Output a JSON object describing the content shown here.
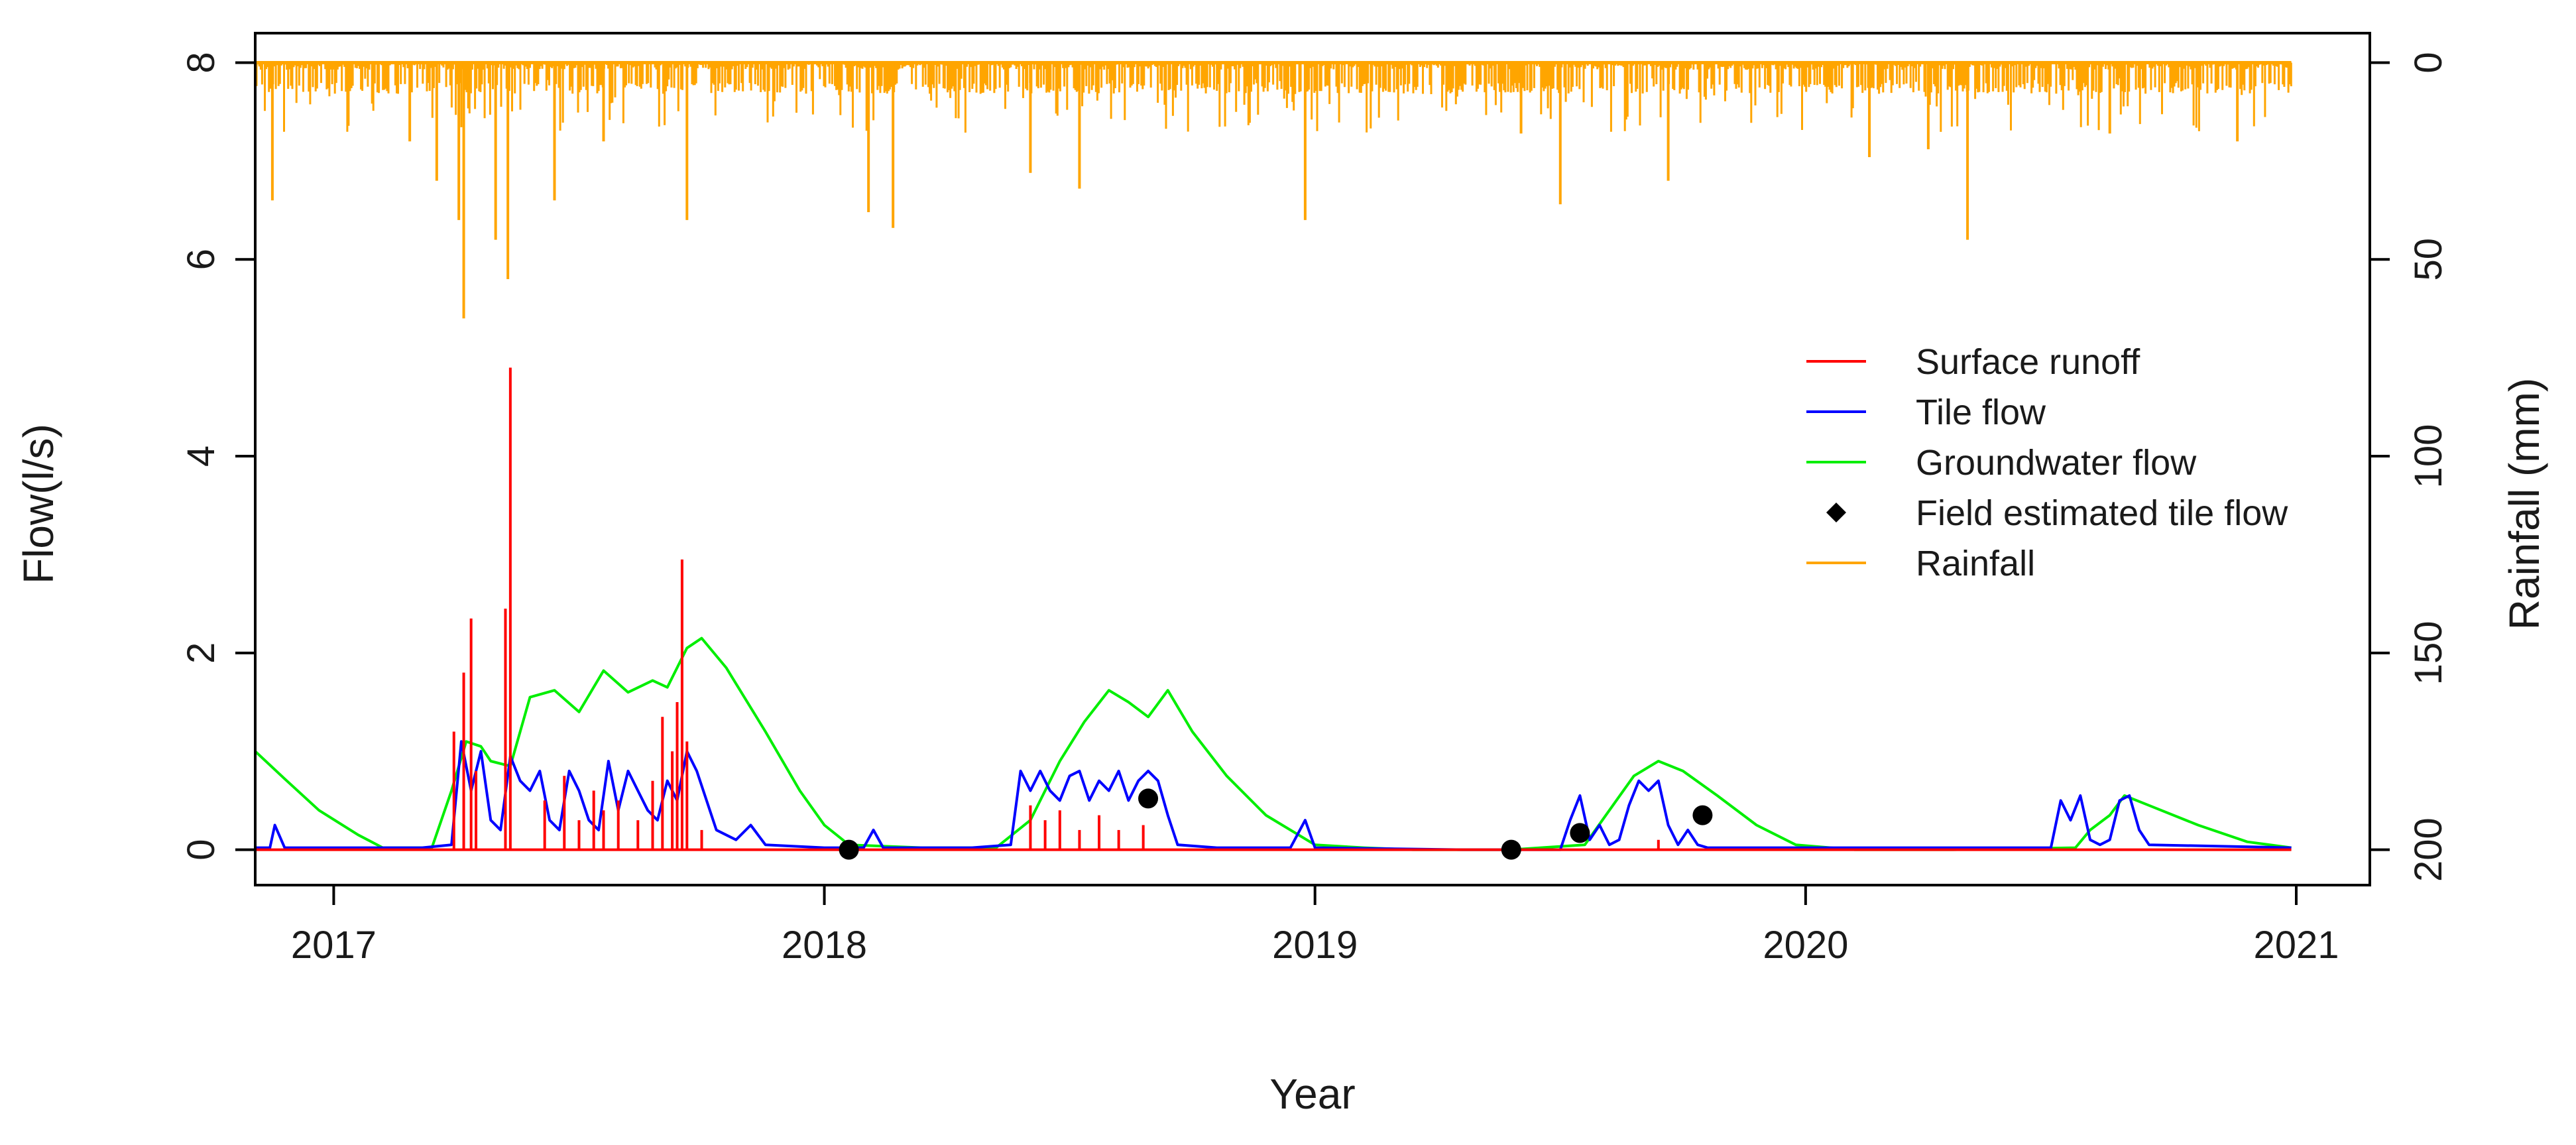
{
  "chart_data": {
    "type": "line",
    "title": "",
    "xlabel": "Year",
    "ylabel": "Flow(l/s)",
    "y2label": "Rainfall (mm)",
    "xlim": [
      2016.84,
      2021.15
    ],
    "ylim": [
      -0.36,
      8.3
    ],
    "y2lim": [
      200,
      0
    ],
    "x_ticks": [
      2017,
      2018,
      2019,
      2020,
      2021
    ],
    "x_tick_labels": [
      "2017",
      "2018",
      "2019",
      "2020",
      "2021"
    ],
    "y_ticks": [
      0,
      2,
      4,
      6,
      8
    ],
    "y_tick_labels": [
      "0",
      "2",
      "4",
      "6",
      "8"
    ],
    "y2_ticks": [
      0,
      50,
      100,
      150,
      200
    ],
    "y2_tick_labels": [
      "0",
      "50",
      "100",
      "150",
      "200"
    ],
    "legend_position": "right-center",
    "legend": [
      {
        "label": "Surface runoff",
        "color": "#ff0000",
        "kind": "line"
      },
      {
        "label": "Tile flow",
        "color": "#0000ff",
        "kind": "line"
      },
      {
        "label": "Groundwater flow",
        "color": "#00ee00",
        "kind": "line"
      },
      {
        "label": "Field estimated tile flow",
        "color": "#000000",
        "kind": "point"
      },
      {
        "label": "Rainfall",
        "color": "#ffa500",
        "kind": "line"
      }
    ],
    "series": [
      {
        "name": "Groundwater flow",
        "color": "#00ee00",
        "x": [
          2016.84,
          2016.9,
          2016.97,
          2017.05,
          2017.1,
          2017.2,
          2017.24,
          2017.27,
          2017.3,
          2017.32,
          2017.36,
          2017.4,
          2017.45,
          2017.5,
          2017.55,
          2017.6,
          2017.65,
          2017.68,
          2017.72,
          2017.75,
          2017.8,
          2017.88,
          2017.95,
          2018.0,
          2018.05,
          2018.2,
          2018.35,
          2018.42,
          2018.48,
          2018.53,
          2018.58,
          2018.62,
          2018.66,
          2018.7,
          2018.75,
          2018.82,
          2018.9,
          2019.0,
          2019.1,
          2019.2,
          2019.4,
          2019.55,
          2019.6,
          2019.65,
          2019.7,
          2019.75,
          2019.82,
          2019.9,
          2019.98,
          2020.1,
          2020.3,
          2020.55,
          2020.58,
          2020.62,
          2020.65,
          2020.7,
          2020.8,
          2020.9,
          2020.99
        ],
        "values": [
          1.0,
          0.72,
          0.4,
          0.15,
          0.02,
          0.02,
          0.6,
          1.1,
          1.05,
          0.9,
          0.85,
          1.55,
          1.62,
          1.4,
          1.82,
          1.6,
          1.72,
          1.65,
          2.05,
          2.15,
          1.85,
          1.2,
          0.6,
          0.25,
          0.05,
          0.02,
          0.02,
          0.3,
          0.9,
          1.3,
          1.62,
          1.5,
          1.35,
          1.62,
          1.2,
          0.75,
          0.35,
          0.05,
          0.02,
          0.0,
          0.0,
          0.05,
          0.4,
          0.75,
          0.9,
          0.8,
          0.55,
          0.25,
          0.05,
          0.0,
          0.0,
          0.02,
          0.2,
          0.35,
          0.55,
          0.45,
          0.25,
          0.08,
          0.02
        ]
      },
      {
        "name": "Tile flow",
        "color": "#0000ff",
        "x": [
          2016.84,
          2016.87,
          2016.88,
          2016.9,
          2017.0,
          2017.1,
          2017.18,
          2017.24,
          2017.26,
          2017.28,
          2017.3,
          2017.32,
          2017.34,
          2017.36,
          2017.38,
          2017.4,
          2017.42,
          2017.44,
          2017.46,
          2017.48,
          2017.5,
          2017.52,
          2017.54,
          2017.56,
          2017.58,
          2017.6,
          2017.62,
          2017.64,
          2017.66,
          2017.68,
          2017.7,
          2017.72,
          2017.74,
          2017.76,
          2017.78,
          2017.82,
          2017.85,
          2017.88,
          2018.0,
          2018.08,
          2018.1,
          2018.12,
          2018.3,
          2018.38,
          2018.4,
          2018.42,
          2018.44,
          2018.46,
          2018.48,
          2018.5,
          2018.52,
          2018.54,
          2018.56,
          2018.58,
          2018.6,
          2018.62,
          2018.64,
          2018.66,
          2018.68,
          2018.7,
          2018.72,
          2018.8,
          2018.95,
          2018.98,
          2019.0,
          2019.3,
          2019.5,
          2019.52,
          2019.54,
          2019.56,
          2019.58,
          2019.6,
          2019.62,
          2019.64,
          2019.66,
          2019.68,
          2019.7,
          2019.72,
          2019.74,
          2019.76,
          2019.78,
          2019.8,
          2020.0,
          2020.45,
          2020.5,
          2020.52,
          2020.54,
          2020.56,
          2020.58,
          2020.6,
          2020.62,
          2020.64,
          2020.66,
          2020.68,
          2020.7,
          2020.99
        ],
        "values": [
          0.02,
          0.02,
          0.25,
          0.02,
          0.02,
          0.02,
          0.02,
          0.05,
          1.1,
          0.6,
          1.0,
          0.3,
          0.2,
          0.95,
          0.7,
          0.6,
          0.8,
          0.3,
          0.2,
          0.8,
          0.6,
          0.3,
          0.2,
          0.9,
          0.4,
          0.8,
          0.6,
          0.4,
          0.3,
          0.7,
          0.5,
          1.0,
          0.8,
          0.5,
          0.2,
          0.1,
          0.25,
          0.05,
          0.02,
          0.02,
          0.2,
          0.02,
          0.02,
          0.05,
          0.8,
          0.6,
          0.8,
          0.6,
          0.5,
          0.75,
          0.8,
          0.5,
          0.7,
          0.6,
          0.8,
          0.5,
          0.7,
          0.8,
          0.7,
          0.35,
          0.05,
          0.02,
          0.02,
          0.3,
          0.02,
          0.0,
          0.0,
          0.3,
          0.55,
          0.1,
          0.25,
          0.05,
          0.1,
          0.45,
          0.7,
          0.6,
          0.7,
          0.25,
          0.05,
          0.2,
          0.05,
          0.02,
          0.02,
          0.02,
          0.02,
          0.5,
          0.3,
          0.55,
          0.1,
          0.05,
          0.1,
          0.5,
          0.55,
          0.2,
          0.05,
          0.02
        ]
      },
      {
        "name": "Surface runoff",
        "color": "#ff0000",
        "type": "spikes",
        "x": [
          2017.245,
          2017.265,
          2017.28,
          2017.29,
          2017.35,
          2017.36,
          2017.43,
          2017.47,
          2017.5,
          2017.53,
          2017.55,
          2017.58,
          2017.62,
          2017.65,
          2017.67,
          2017.69,
          2017.7,
          2017.71,
          2017.72,
          2017.75,
          2018.42,
          2018.45,
          2018.48,
          2018.52,
          2018.56,
          2018.6,
          2018.65,
          2019.7
        ],
        "values": [
          1.2,
          1.8,
          2.35,
          0.8,
          2.45,
          4.9,
          0.5,
          0.75,
          0.3,
          0.6,
          0.4,
          0.5,
          0.3,
          0.7,
          1.35,
          1.0,
          1.5,
          2.95,
          1.1,
          0.2,
          0.45,
          0.3,
          0.4,
          0.2,
          0.35,
          0.2,
          0.25,
          0.1
        ]
      },
      {
        "name": "Rainfall",
        "color": "#ffa500",
        "type": "rain-bars",
        "start": 2016.84,
        "end": 2020.99,
        "background_step": 0.0028,
        "peaks_x": [
          2016.875,
          2017.155,
          2017.21,
          2017.255,
          2017.265,
          2017.33,
          2017.355,
          2017.45,
          2017.55,
          2017.72,
          2018.09,
          2018.14,
          2018.42,
          2018.52,
          2018.98,
          2019.42,
          2019.5,
          2019.72,
          2020.13,
          2020.25,
          2020.33,
          2020.62,
          2020.88
        ],
        "peaks_mm": [
          35,
          20,
          30,
          40,
          65,
          45,
          55,
          35,
          20,
          40,
          38,
          42,
          28,
          32,
          40,
          18,
          36,
          30,
          24,
          22,
          45,
          18,
          20
        ]
      }
    ],
    "points": {
      "name": "Field estimated tile flow",
      "color": "#000000",
      "x": [
        2018.05,
        2018.66,
        2019.4,
        2019.54,
        2019.79
      ],
      "values": [
        0.0,
        0.52,
        0.0,
        0.17,
        0.35
      ]
    }
  }
}
